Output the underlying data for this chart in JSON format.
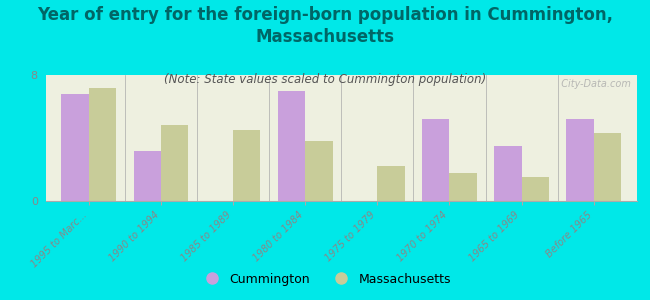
{
  "title": "Year of entry for the foreign-born population in Cummington,\nMassachusetts",
  "subtitle": "(Note: State values scaled to Cummington population)",
  "categories": [
    "1995 to Marc...",
    "1990 to 1994",
    "1985 to 1989",
    "1980 to 1984",
    "1975 to 1979",
    "1970 to 1974",
    "1965 to 1969",
    "Before 1965"
  ],
  "cummington": [
    6.8,
    3.2,
    0.0,
    7.0,
    0.0,
    5.2,
    3.5,
    5.2
  ],
  "massachusetts": [
    7.2,
    4.8,
    4.5,
    3.8,
    2.2,
    1.8,
    1.5,
    4.3
  ],
  "cummington_color": "#c9a0dc",
  "massachusetts_color": "#c8cc99",
  "background_color": "#00e8e8",
  "plot_bg": "#eef0e0",
  "title_color": "#006666",
  "subtitle_color": "#555555",
  "tick_color": "#888888",
  "ylim": [
    0,
    8
  ],
  "yticks": [
    0,
    8
  ],
  "bar_width": 0.38,
  "title_fontsize": 12,
  "subtitle_fontsize": 8.5,
  "legend_fontsize": 9,
  "watermark": "  City-Data.com"
}
